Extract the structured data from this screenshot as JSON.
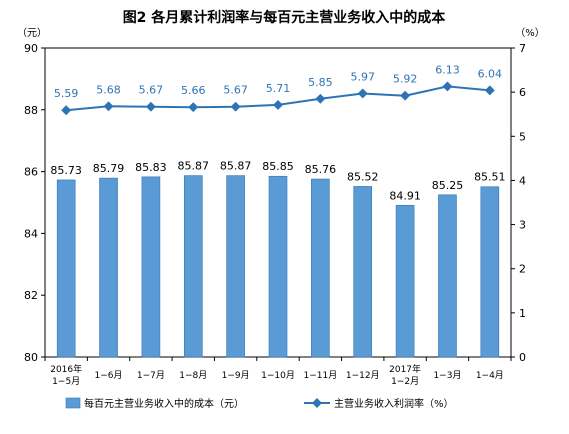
{
  "chart_data": {
    "type": "bar+line",
    "title": "图2 各月累计利润率与每百元主营业务收入中的成本",
    "left_unit": "（元）",
    "right_unit": "（%）",
    "categories": [
      [
        "2016年",
        "1−5月"
      ],
      [
        "1−6月"
      ],
      [
        "1−7月"
      ],
      [
        "1−8月"
      ],
      [
        "1−9月"
      ],
      [
        "1−10月"
      ],
      [
        "1−11月"
      ],
      [
        "1−12月"
      ],
      [
        "2017年",
        "1−2月"
      ],
      [
        "1−3月"
      ],
      [
        "1−4月"
      ]
    ],
    "series": [
      {
        "name": "每百元主营业务收入中的成本（元）",
        "type": "bar",
        "axis": "left",
        "color": "#5b9bd5",
        "values": [
          85.73,
          85.79,
          85.83,
          85.87,
          85.87,
          85.85,
          85.76,
          85.52,
          84.91,
          85.25,
          85.51
        ],
        "labels": [
          "85.73",
          "85.79",
          "85.83",
          "85.87",
          "85.87",
          "85.85",
          "85.76",
          "85.52",
          "84.91",
          "85.25",
          "85.51"
        ]
      },
      {
        "name": "主营业务收入利润率（%）",
        "type": "line",
        "axis": "right",
        "color": "#2e74b5",
        "values": [
          5.59,
          5.68,
          5.67,
          5.66,
          5.67,
          5.71,
          5.85,
          5.97,
          5.92,
          6.13,
          6.04
        ],
        "labels": [
          "5.59",
          "5.68",
          "5.67",
          "5.66",
          "5.67",
          "5.71",
          "5.85",
          "5.97",
          "5.92",
          "6.13",
          "6.04"
        ]
      }
    ],
    "left_axis": {
      "min": 80,
      "max": 90,
      "ticks": [
        "80",
        "82",
        "84",
        "86",
        "88",
        "90"
      ]
    },
    "right_axis": {
      "min": 0,
      "max": 7,
      "ticks": [
        "0",
        "1",
        "2",
        "3",
        "4",
        "5",
        "6",
        "7"
      ]
    },
    "grid": false,
    "legend_position": "bottom"
  }
}
